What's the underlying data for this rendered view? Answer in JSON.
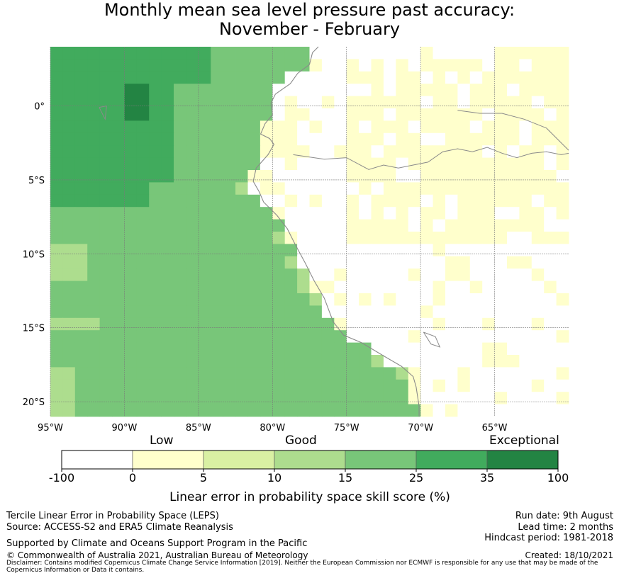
{
  "title": {
    "line1": "Monthly mean sea level pressure past accuracy:",
    "line2": "November - February"
  },
  "map": {
    "lon_min": -95,
    "lon_max": -60,
    "lat_min": -21,
    "lat_max": 4,
    "lon_ticks": [
      {
        "value": -95,
        "label": "95°W"
      },
      {
        "value": -90,
        "label": "90°W"
      },
      {
        "value": -85,
        "label": "85°W"
      },
      {
        "value": -80,
        "label": "80°W"
      },
      {
        "value": -75,
        "label": "75°W"
      },
      {
        "value": -70,
        "label": "70°W"
      },
      {
        "value": -65,
        "label": "65°W"
      }
    ],
    "lat_ticks": [
      {
        "value": 0,
        "label": "0°"
      },
      {
        "value": -5,
        "label": "5°S"
      },
      {
        "value": -10,
        "label": "10°S"
      },
      {
        "value": -15,
        "label": "15°S"
      },
      {
        "value": -20,
        "label": "20°S"
      }
    ],
    "grid": true,
    "grid_color": "#7a7a7a",
    "coast_color": "#8a8a8a"
  },
  "colorbar": {
    "ticks": [
      "-100",
      "0",
      "5",
      "10",
      "15",
      "25",
      "35",
      "100"
    ],
    "colors": [
      "#ffffff",
      "#ffffcc",
      "#d9f0a3",
      "#addd8e",
      "#78c679",
      "#41ab5d",
      "#238443"
    ],
    "label": "Linear error in probability space skill score (%)",
    "categories": [
      "Low",
      "Good",
      "Exceptional"
    ]
  },
  "footer": {
    "left1": "Tercile Linear Error in Probability Space (LEPS)",
    "left2": "Source: ACCESS-S2 and ERA5 Climate Reanalysis",
    "left3": "Supported by Climate and Oceans Support Program in the Pacific",
    "left4": "© Commonwealth of Australia 2021, Australian Bureau of Meteorology",
    "right1": "Run date: 9th August",
    "right2": "Lead time: 2 months",
    "right3": "Hindcast period: 1981-2018",
    "right4": "Created: 18/10/2021",
    "disclaimer": "Disclaimer: Contains modified Copernicus Climate Change Service Information [2019]. Neither the European Commission nor ECMWF is responsible for any use that may be made of the Copernicus Information or Data it contains."
  }
}
